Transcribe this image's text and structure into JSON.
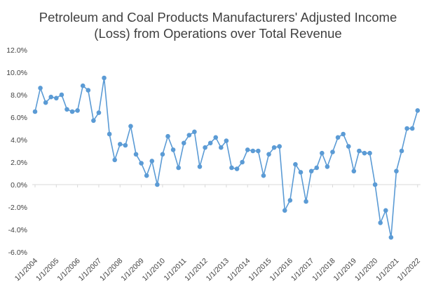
{
  "chart_data": {
    "type": "line",
    "title_lines": [
      "Petroleum and Coal Products Manufacturers' Adjusted Income",
      "(Loss) from Operations over Total Revenue"
    ],
    "xlabel": "",
    "ylabel": "",
    "ylim": [
      -0.06,
      0.12
    ],
    "yticks": [
      -0.06,
      -0.04,
      -0.02,
      0.0,
      0.02,
      0.04,
      0.06,
      0.08,
      0.1,
      0.12
    ],
    "ytick_labels": [
      "-6.0%",
      "-4.0%",
      "-2.0%",
      "0.0%",
      "2.0%",
      "4.0%",
      "6.0%",
      "8.0%",
      "10.0%",
      "12.0%"
    ],
    "xtick_labels": [
      "1/1/2004",
      "1/1/2005",
      "1/1/2006",
      "1/1/2007",
      "1/1/2008",
      "1/1/2009",
      "1/1/2010",
      "1/1/2011",
      "1/1/2012",
      "1/1/2013",
      "1/1/2014",
      "1/1/2015",
      "1/1/2016",
      "1/1/2017",
      "1/1/2018",
      "1/1/2019",
      "1/1/2020",
      "1/1/2021",
      "1/1/2022"
    ],
    "grid": false,
    "legend": "none",
    "line_color": "#5b9bd5",
    "series": [
      {
        "x": [
          "2004-Q1",
          "2004-Q2",
          "2004-Q3",
          "2004-Q4",
          "2005-Q1",
          "2005-Q2",
          "2005-Q3",
          "2005-Q4",
          "2006-Q1",
          "2006-Q2",
          "2006-Q3",
          "2006-Q4",
          "2007-Q1",
          "2007-Q2",
          "2007-Q3",
          "2007-Q4",
          "2008-Q1",
          "2008-Q2",
          "2008-Q3",
          "2008-Q4",
          "2009-Q1",
          "2009-Q2",
          "2009-Q3",
          "2009-Q4",
          "2010-Q1",
          "2010-Q2",
          "2010-Q3",
          "2010-Q4",
          "2011-Q1",
          "2011-Q2",
          "2011-Q3",
          "2011-Q4",
          "2012-Q1",
          "2012-Q2",
          "2012-Q3",
          "2012-Q4",
          "2013-Q1",
          "2013-Q2",
          "2013-Q3",
          "2013-Q4",
          "2014-Q1",
          "2014-Q2",
          "2014-Q3",
          "2014-Q4",
          "2015-Q1",
          "2015-Q2",
          "2015-Q3",
          "2015-Q4",
          "2016-Q1",
          "2016-Q2",
          "2016-Q3",
          "2016-Q4",
          "2017-Q1",
          "2017-Q2",
          "2017-Q3",
          "2017-Q4",
          "2018-Q1",
          "2018-Q2",
          "2018-Q3",
          "2018-Q4",
          "2019-Q1",
          "2019-Q2",
          "2019-Q3",
          "2019-Q4",
          "2020-Q1",
          "2020-Q2",
          "2020-Q3",
          "2020-Q4",
          "2021-Q1",
          "2021-Q2",
          "2021-Q3",
          "2021-Q4",
          "2022-Q1"
        ],
        "values": [
          0.065,
          0.086,
          0.073,
          0.078,
          0.077,
          0.08,
          0.067,
          0.065,
          0.066,
          0.088,
          0.084,
          0.057,
          0.064,
          0.095,
          0.045,
          0.022,
          0.036,
          0.035,
          0.052,
          0.027,
          0.019,
          0.008,
          0.021,
          0.0,
          0.027,
          0.043,
          0.031,
          0.015,
          0.037,
          0.044,
          0.047,
          0.016,
          0.033,
          0.037,
          0.042,
          0.033,
          0.039,
          0.015,
          0.014,
          0.02,
          0.031,
          0.03,
          0.03,
          0.008,
          0.027,
          0.033,
          0.034,
          -0.023,
          -0.014,
          0.018,
          0.011,
          -0.015,
          0.012,
          0.015,
          0.028,
          0.016,
          0.029,
          0.042,
          0.045,
          0.034,
          0.012,
          0.03,
          0.028,
          0.028,
          0.0,
          -0.034,
          -0.023,
          -0.047,
          0.012,
          0.03,
          0.05,
          0.05,
          0.066
        ]
      }
    ]
  }
}
